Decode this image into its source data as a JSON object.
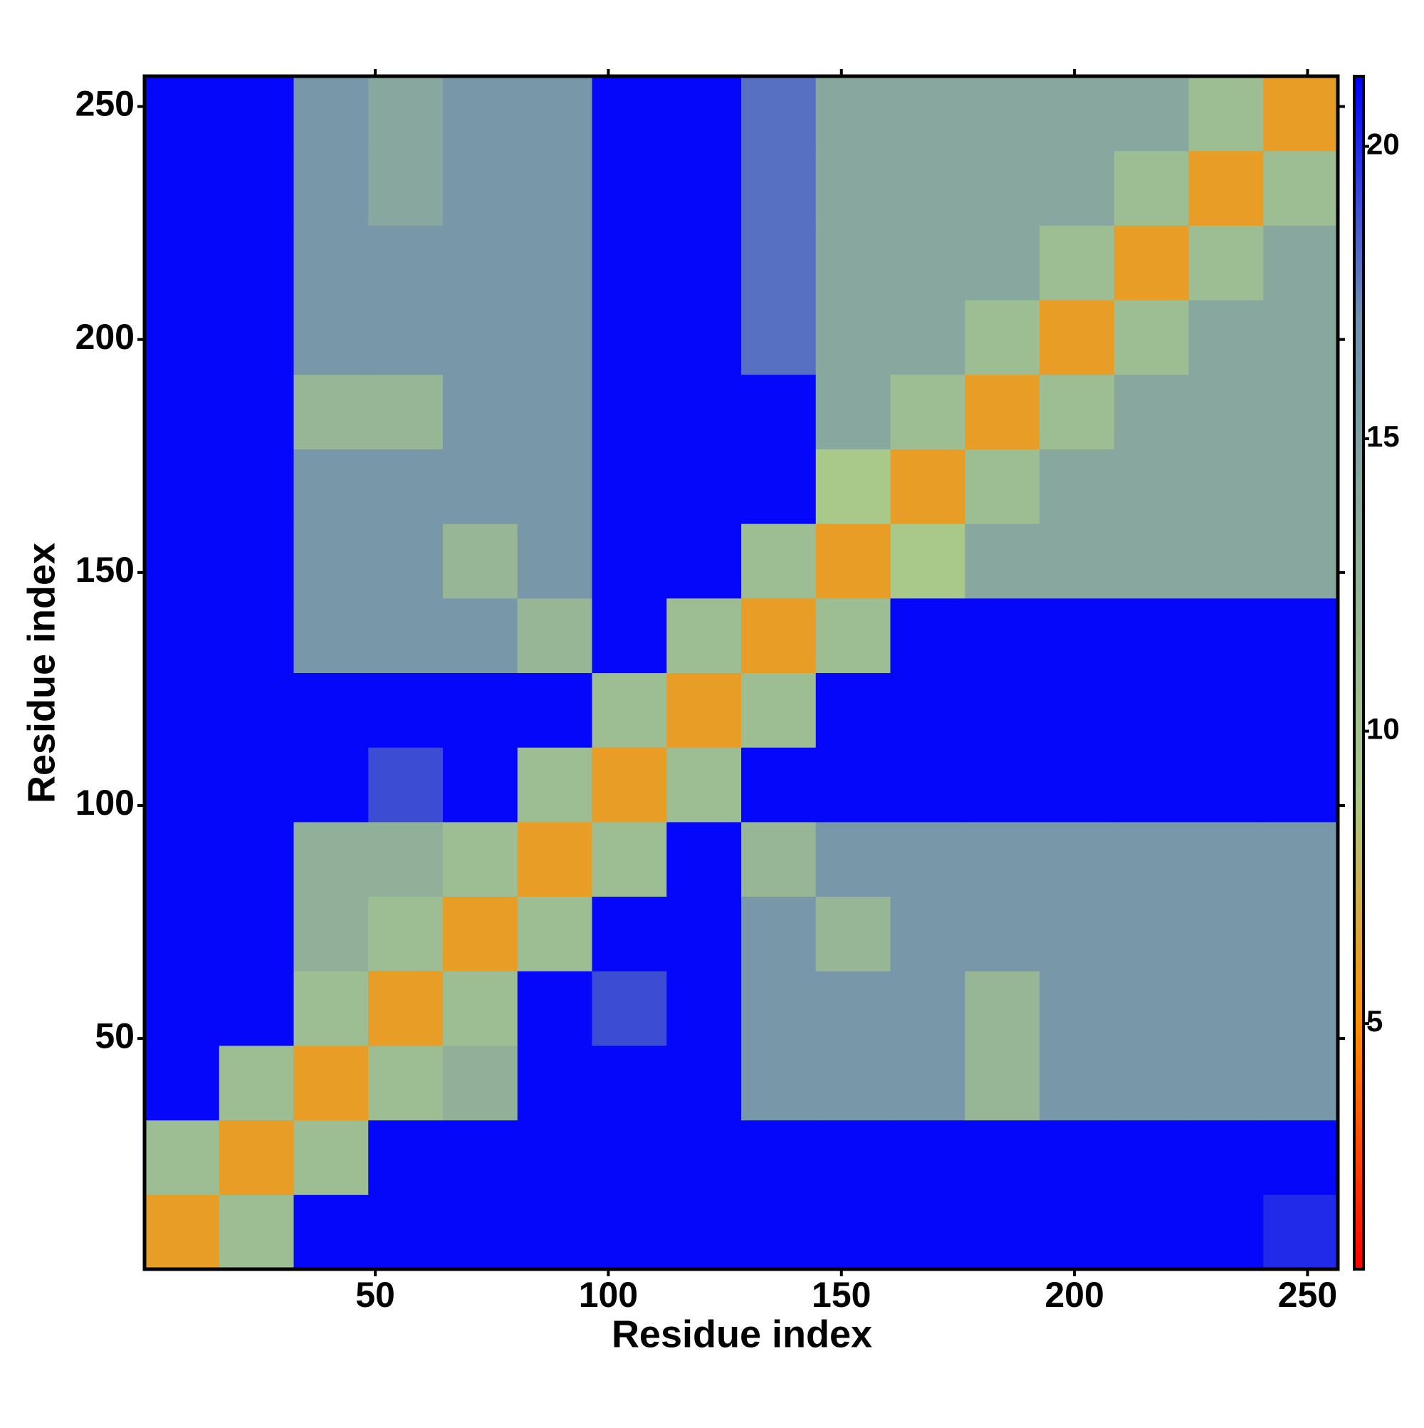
{
  "chart_data": {
    "type": "heatmap",
    "xlabel": "Residue index",
    "ylabel": "Residue index",
    "x": [
      8.5,
      24.5,
      40.5,
      56.5,
      72.5,
      88.5,
      104.5,
      120.5,
      136.5,
      152.5,
      168.5,
      184.5,
      200.5,
      216.5,
      232.5,
      248.5
    ],
    "y": [
      8.5,
      24.5,
      40.5,
      56.5,
      72.5,
      88.5,
      104.5,
      120.5,
      136.5,
      152.5,
      168.5,
      184.5,
      200.5,
      216.5,
      232.5,
      248.5
    ],
    "z": [
      [
        6,
        11,
        21,
        21,
        21,
        21,
        21,
        21,
        21,
        21,
        21,
        21,
        21,
        21,
        21,
        20
      ],
      [
        11,
        6,
        11,
        21,
        21,
        21,
        21,
        21,
        21,
        21,
        21,
        21,
        21,
        21,
        21,
        21
      ],
      [
        21,
        11,
        6,
        11,
        13,
        21,
        21,
        21,
        16,
        16,
        16,
        12,
        16,
        16,
        16,
        16
      ],
      [
        21,
        21,
        11,
        6,
        11,
        21,
        19,
        21,
        16,
        16,
        16,
        12,
        16,
        16,
        16,
        16
      ],
      [
        21,
        21,
        13,
        11,
        6,
        11,
        21,
        21,
        16,
        12,
        16,
        16,
        16,
        16,
        16,
        16
      ],
      [
        21,
        21,
        13,
        13,
        11,
        6,
        11,
        21,
        12,
        16,
        16,
        16,
        16,
        16,
        16,
        16
      ],
      [
        21,
        21,
        21,
        19,
        21,
        11,
        6,
        11,
        21,
        21,
        21,
        21,
        21,
        21,
        21,
        21
      ],
      [
        21,
        21,
        21,
        21,
        21,
        21,
        11,
        6,
        11,
        21,
        21,
        21,
        21,
        21,
        21,
        21
      ],
      [
        21,
        21,
        16,
        16,
        16,
        12,
        21,
        11,
        6,
        11,
        21,
        21,
        21,
        21,
        21,
        21
      ],
      [
        21,
        21,
        16,
        16,
        12,
        16,
        21,
        21,
        11,
        6,
        9,
        14,
        14,
        14,
        14,
        14
      ],
      [
        21,
        21,
        16,
        16,
        16,
        16,
        21,
        21,
        21,
        9,
        6,
        11,
        14,
        14,
        14,
        14
      ],
      [
        21,
        21,
        12,
        12,
        16,
        16,
        21,
        21,
        21,
        14,
        11,
        6,
        11,
        14,
        14,
        14
      ],
      [
        21,
        21,
        16,
        16,
        16,
        16,
        21,
        21,
        18,
        14,
        14,
        11,
        6,
        11,
        14,
        14
      ],
      [
        21,
        21,
        16,
        16,
        16,
        16,
        21,
        21,
        18,
        14,
        14,
        14,
        11,
        6,
        11,
        14
      ],
      [
        21,
        21,
        16,
        14,
        16,
        16,
        21,
        21,
        18,
        14,
        14,
        14,
        14,
        11,
        6,
        11
      ],
      [
        21,
        21,
        16,
        14,
        16,
        16,
        21,
        21,
        18,
        14,
        14,
        14,
        14,
        14,
        11,
        6
      ]
    ],
    "xlim": [
      0.5,
      256.5
    ],
    "ylim": [
      0.5,
      256.5
    ],
    "xticks": [
      50,
      100,
      150,
      200,
      250
    ],
    "yticks": [
      50,
      100,
      150,
      200,
      250
    ],
    "clim": [
      0.8,
      21.2
    ],
    "cticks": [
      5,
      10,
      15,
      20
    ],
    "colorscale": [
      "#ff0000",
      "#ff8c00",
      "#a9c98a",
      "#90b09a",
      "#6f8fb0",
      "#0000ff"
    ]
  }
}
